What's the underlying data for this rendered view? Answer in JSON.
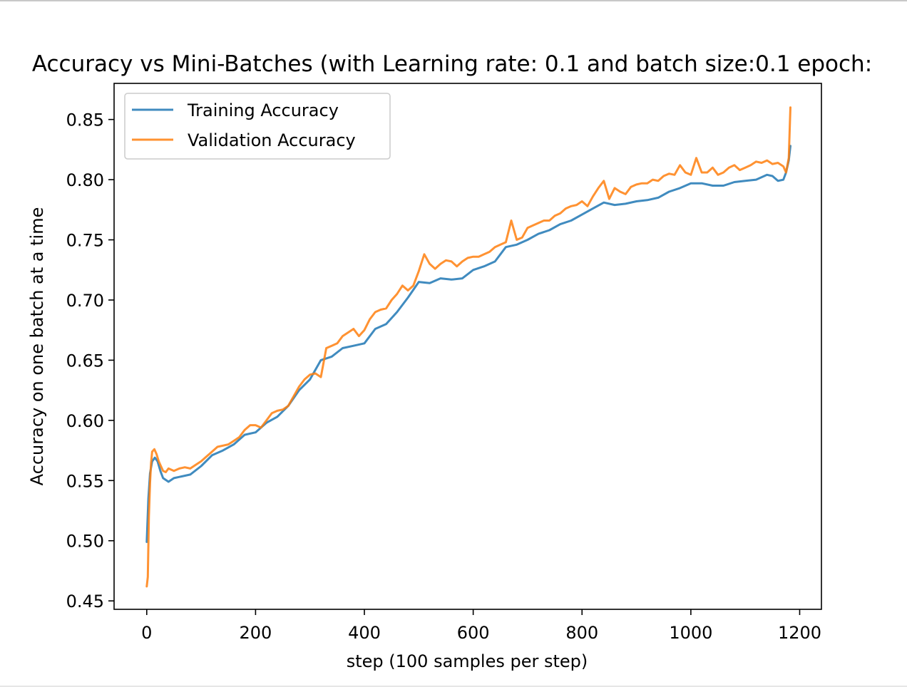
{
  "chart_data": {
    "type": "line",
    "title": "Accuracy vs Mini-Batches (with Learning rate: 0.1 and batch size:0.1 epoch:",
    "xlabel": "step (100 samples per step)",
    "ylabel": "Accuracy on one batch at a time",
    "xlim": [
      -60,
      1240
    ],
    "ylim": [
      0.443,
      0.88
    ],
    "xticks": [
      0,
      200,
      400,
      600,
      800,
      1000,
      1200
    ],
    "xtick_labels": [
      "0",
      "200",
      "400",
      "600",
      "800",
      "1000",
      "1200"
    ],
    "yticks": [
      0.45,
      0.5,
      0.55,
      0.6,
      0.65,
      0.7,
      0.75,
      0.8,
      0.85
    ],
    "ytick_labels": [
      "0.45",
      "0.50",
      "0.55",
      "0.60",
      "0.65",
      "0.70",
      "0.75",
      "0.80",
      "0.85"
    ],
    "grid": false,
    "legend_position": "top-left",
    "series": [
      {
        "name": "Training Accuracy",
        "color": "#1f77b4",
        "x": [
          0,
          3,
          6,
          10,
          15,
          20,
          25,
          30,
          40,
          50,
          60,
          80,
          100,
          120,
          140,
          160,
          180,
          200,
          220,
          240,
          260,
          280,
          300,
          320,
          340,
          360,
          380,
          400,
          420,
          440,
          460,
          480,
          500,
          520,
          540,
          560,
          580,
          600,
          620,
          640,
          660,
          680,
          700,
          720,
          740,
          760,
          780,
          800,
          820,
          840,
          860,
          880,
          900,
          920,
          940,
          960,
          980,
          1000,
          1020,
          1040,
          1060,
          1080,
          1100,
          1120,
          1140,
          1150,
          1160,
          1170,
          1175,
          1180,
          1183
        ],
        "y": [
          0.499,
          0.535,
          0.556,
          0.566,
          0.569,
          0.566,
          0.558,
          0.552,
          0.549,
          0.552,
          0.553,
          0.555,
          0.562,
          0.571,
          0.575,
          0.58,
          0.588,
          0.59,
          0.598,
          0.603,
          0.612,
          0.625,
          0.634,
          0.65,
          0.653,
          0.66,
          0.662,
          0.664,
          0.676,
          0.68,
          0.69,
          0.702,
          0.715,
          0.714,
          0.718,
          0.717,
          0.718,
          0.725,
          0.728,
          0.732,
          0.744,
          0.746,
          0.75,
          0.755,
          0.758,
          0.763,
          0.766,
          0.771,
          0.776,
          0.781,
          0.779,
          0.78,
          0.782,
          0.783,
          0.785,
          0.79,
          0.793,
          0.797,
          0.797,
          0.795,
          0.795,
          0.798,
          0.799,
          0.8,
          0.804,
          0.803,
          0.799,
          0.8,
          0.806,
          0.816,
          0.828
        ]
      },
      {
        "name": "Validation Accuracy",
        "color": "#ff7f0e",
        "x": [
          0,
          2,
          4,
          6,
          8,
          10,
          14,
          18,
          22,
          26,
          30,
          35,
          40,
          50,
          60,
          70,
          80,
          90,
          100,
          110,
          120,
          130,
          140,
          150,
          160,
          170,
          180,
          190,
          200,
          210,
          220,
          230,
          240,
          250,
          260,
          270,
          280,
          290,
          300,
          310,
          320,
          330,
          340,
          350,
          360,
          370,
          380,
          390,
          400,
          410,
          420,
          430,
          440,
          450,
          460,
          470,
          480,
          490,
          500,
          510,
          520,
          530,
          540,
          550,
          560,
          570,
          580,
          590,
          600,
          610,
          620,
          630,
          640,
          650,
          660,
          670,
          680,
          690,
          700,
          710,
          720,
          730,
          740,
          750,
          760,
          770,
          780,
          790,
          800,
          810,
          820,
          830,
          840,
          850,
          860,
          870,
          880,
          890,
          900,
          910,
          920,
          930,
          940,
          950,
          960,
          970,
          980,
          990,
          1000,
          1010,
          1020,
          1030,
          1040,
          1050,
          1060,
          1070,
          1080,
          1090,
          1100,
          1110,
          1120,
          1130,
          1140,
          1150,
          1160,
          1170,
          1175,
          1180,
          1183
        ],
        "y": [
          0.462,
          0.47,
          0.52,
          0.548,
          0.565,
          0.574,
          0.576,
          0.572,
          0.566,
          0.562,
          0.558,
          0.557,
          0.56,
          0.558,
          0.56,
          0.561,
          0.56,
          0.563,
          0.566,
          0.57,
          0.574,
          0.578,
          0.579,
          0.58,
          0.583,
          0.586,
          0.592,
          0.596,
          0.596,
          0.594,
          0.6,
          0.606,
          0.608,
          0.609,
          0.612,
          0.62,
          0.628,
          0.634,
          0.638,
          0.639,
          0.636,
          0.66,
          0.662,
          0.664,
          0.67,
          0.673,
          0.676,
          0.67,
          0.675,
          0.684,
          0.69,
          0.692,
          0.693,
          0.7,
          0.705,
          0.712,
          0.708,
          0.712,
          0.724,
          0.738,
          0.73,
          0.726,
          0.73,
          0.733,
          0.732,
          0.728,
          0.732,
          0.735,
          0.736,
          0.736,
          0.738,
          0.74,
          0.744,
          0.746,
          0.748,
          0.766,
          0.75,
          0.752,
          0.76,
          0.762,
          0.764,
          0.766,
          0.766,
          0.77,
          0.772,
          0.776,
          0.778,
          0.779,
          0.782,
          0.778,
          0.786,
          0.793,
          0.799,
          0.784,
          0.793,
          0.79,
          0.788,
          0.794,
          0.796,
          0.797,
          0.797,
          0.8,
          0.799,
          0.803,
          0.805,
          0.804,
          0.812,
          0.806,
          0.804,
          0.818,
          0.806,
          0.806,
          0.81,
          0.804,
          0.806,
          0.81,
          0.812,
          0.808,
          0.81,
          0.812,
          0.815,
          0.814,
          0.816,
          0.813,
          0.814,
          0.811,
          0.806,
          0.818,
          0.86
        ]
      }
    ]
  }
}
